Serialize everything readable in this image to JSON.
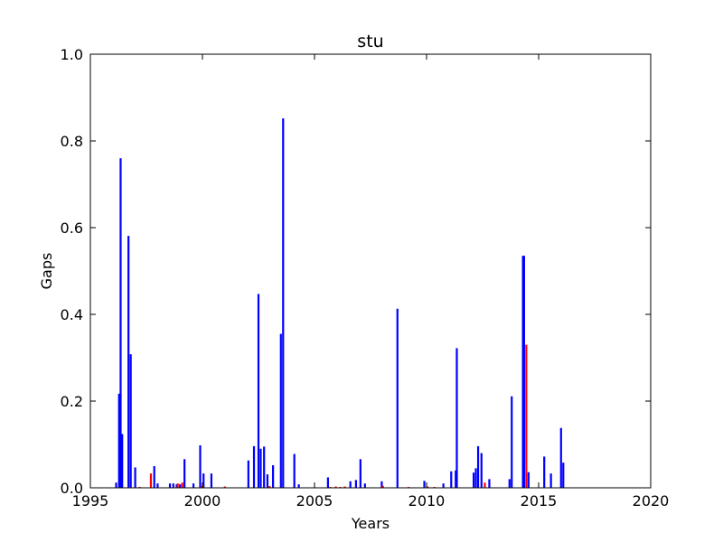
{
  "chart_data": {
    "type": "bar",
    "title": "stu",
    "xlabel": "Years",
    "ylabel": "Gaps",
    "xlim": [
      1995,
      2020
    ],
    "ylim": [
      0.0,
      1.0
    ],
    "xticks": [
      "1995",
      "2000",
      "2005",
      "2010",
      "2015",
      "2020"
    ],
    "yticks": [
      "0.0",
      "0.2",
      "0.4",
      "0.6",
      "0.8",
      "1.0"
    ],
    "grid": false,
    "series": [
      {
        "color": "#0000ff",
        "x": [
          1996.15,
          1996.28,
          1996.35,
          1996.42,
          1996.7,
          1996.8,
          1997.0,
          1997.85,
          1998.0,
          1998.55,
          1998.7,
          1998.85,
          1999.0,
          1999.2,
          1999.6,
          1999.9,
          2000.05,
          2000.4,
          2002.05,
          2002.3,
          2002.5,
          2002.6,
          2002.75,
          2002.9,
          2003.15,
          2003.5,
          2003.6,
          2004.1,
          2004.3,
          2005.6,
          2006.6,
          2006.85,
          2007.05,
          2007.25,
          2008.0,
          2008.7,
          2009.9,
          2010.75,
          2011.1,
          2011.3,
          2011.35,
          2012.1,
          2012.2,
          2012.3,
          2012.45,
          2012.8,
          2013.7,
          2013.8,
          2014.3,
          2014.35,
          2014.55,
          2015.25,
          2015.55,
          2016.0,
          2016.1
        ],
        "values": [
          0.012,
          0.217,
          0.76,
          0.124,
          0.581,
          0.308,
          0.047,
          0.05,
          0.01,
          0.01,
          0.01,
          0.008,
          0.008,
          0.066,
          0.01,
          0.098,
          0.033,
          0.033,
          0.063,
          0.096,
          0.447,
          0.09,
          0.095,
          0.031,
          0.052,
          0.355,
          0.852,
          0.078,
          0.008,
          0.024,
          0.015,
          0.018,
          0.066,
          0.01,
          0.015,
          0.413,
          0.016,
          0.01,
          0.038,
          0.04,
          0.322,
          0.035,
          0.045,
          0.096,
          0.08,
          0.02,
          0.02,
          0.211,
          0.535,
          0.535,
          0.036,
          0.072,
          0.033,
          0.138,
          0.058
        ]
      },
      {
        "color": "#ff0000",
        "x": [
          1997.2,
          1997.7,
          1998.9,
          1999.1,
          2000.0,
          2001.0,
          2003.0,
          2005.7,
          2005.95,
          2006.15,
          2006.35,
          2008.05,
          2009.2,
          2010.05,
          2010.35,
          2012.6,
          2014.45
        ],
        "values": [
          0.002,
          0.033,
          0.01,
          0.012,
          0.005,
          0.003,
          0.004,
          0.002,
          0.003,
          0.002,
          0.003,
          0.005,
          0.002,
          0.003,
          0.002,
          0.012,
          0.33
        ]
      }
    ]
  }
}
